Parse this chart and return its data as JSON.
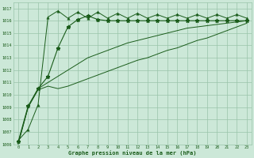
{
  "xlabel": "Graphe pression niveau de la mer (hPa)",
  "background_color": "#cce8d8",
  "grid_color": "#99c4aa",
  "line_color": "#1a5c1a",
  "xlim": [
    -0.5,
    23.5
  ],
  "ylim": [
    1006,
    1017.5
  ],
  "x_ticks": [
    0,
    1,
    2,
    3,
    4,
    5,
    6,
    7,
    8,
    9,
    10,
    11,
    12,
    13,
    14,
    15,
    16,
    17,
    18,
    19,
    20,
    21,
    22,
    23
  ],
  "y_ticks": [
    1006,
    1007,
    1008,
    1009,
    1010,
    1011,
    1012,
    1013,
    1014,
    1015,
    1016,
    1017
  ],
  "series_zigzag": [
    1006.3,
    1007.2,
    1009.2,
    1016.3,
    1016.8,
    1016.2,
    1016.7,
    1016.2,
    1016.7,
    1016.2,
    1016.6,
    1016.2,
    1016.6,
    1016.2,
    1016.5,
    1016.2,
    1016.5,
    1016.2,
    1016.5,
    1016.2,
    1016.5,
    1016.2,
    1016.5,
    1016.2
  ],
  "series_steep": [
    1006.2,
    1009.1,
    1010.5,
    1011.5,
    1013.8,
    1015.5,
    1016.1,
    1016.4,
    1016.1,
    1016.0,
    1016.0,
    1016.0,
    1016.0,
    1016.0,
    1016.0,
    1016.0,
    1016.0,
    1016.0,
    1016.0,
    1016.0,
    1016.0,
    1016.0,
    1016.0,
    1016.0
  ],
  "series_upper": [
    1006.1,
    1009.0,
    1010.5,
    1011.0,
    1011.5,
    1012.0,
    1012.5,
    1013.0,
    1013.3,
    1013.6,
    1013.9,
    1014.2,
    1014.4,
    1014.6,
    1014.8,
    1015.0,
    1015.2,
    1015.4,
    1015.5,
    1015.6,
    1015.7,
    1015.8,
    1015.9,
    1016.0
  ],
  "series_lower": [
    1006.0,
    1009.0,
    1010.4,
    1010.7,
    1010.5,
    1010.7,
    1011.0,
    1011.3,
    1011.6,
    1011.9,
    1012.2,
    1012.5,
    1012.8,
    1013.0,
    1013.3,
    1013.6,
    1013.8,
    1014.1,
    1014.4,
    1014.6,
    1014.9,
    1015.2,
    1015.5,
    1015.8
  ]
}
